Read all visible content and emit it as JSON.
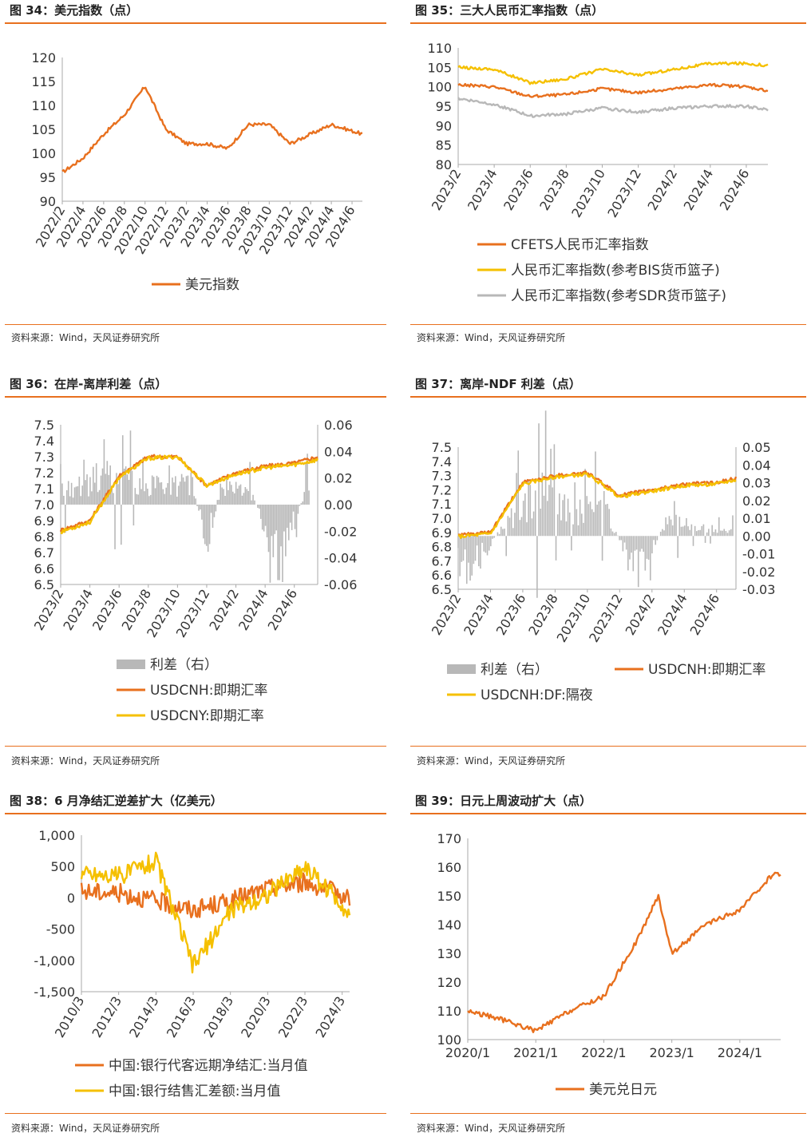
{
  "source_text": "资料来源：Wind，天风证券研究所",
  "panels": [
    {
      "title": "图 34：美元指数（点）",
      "chart_data": {
        "type": "line",
        "title": "图 34：美元指数（点）",
        "x_ticks": [
          "2022/2",
          "2022/4",
          "2022/6",
          "2022/8",
          "2022/10",
          "2022/12",
          "2023/2",
          "2023/4",
          "2023/6",
          "2023/8",
          "2023/10",
          "2023/12",
          "2024/2",
          "2024/4",
          "2024/6"
        ],
        "ylim": [
          90,
          120
        ],
        "y_ticks": [
          90,
          95,
          100,
          105,
          110,
          115,
          120
        ],
        "series": [
          {
            "name": "美元指数",
            "color": "#e8701e",
            "x": [
              0,
              1,
              2,
              3,
              4,
              5,
              6,
              7,
              8,
              9,
              10,
              11,
              12,
              13,
              14.5
            ],
            "values": [
              96,
              99,
              104,
              108,
              114,
              105,
              102,
              102,
              101,
              106,
              106,
              102,
              104,
              106,
              104
            ]
          }
        ],
        "legend": "bottom"
      }
    },
    {
      "title": "图 35：三大人民币汇率指数（点）",
      "chart_data": {
        "type": "line",
        "title": "图 35：三大人民币汇率指数（点）",
        "x_ticks": [
          "2023/2",
          "2023/4",
          "2023/6",
          "2023/8",
          "2023/10",
          "2023/12",
          "2024/2",
          "2024/4",
          "2024/6"
        ],
        "ylim": [
          80,
          110
        ],
        "y_ticks": [
          80,
          85,
          90,
          95,
          100,
          105,
          110
        ],
        "series": [
          {
            "name": "CFETS人民币汇率指数",
            "color": "#e8701e",
            "x": [
              0,
              1,
              2,
              3,
              4,
              5,
              6,
              7,
              8,
              8.6
            ],
            "values": [
              100.5,
              100,
              97.5,
              98,
              99.5,
              98.5,
              99.5,
              100.5,
              100,
              99
            ]
          },
          {
            "name": "人民币汇率指数(参考BIS货币篮子)",
            "color": "#f5c000",
            "x": [
              0,
              1,
              2,
              3,
              4,
              5,
              6,
              7,
              8,
              8.6
            ],
            "values": [
              105,
              104.5,
              101,
              102,
              104.5,
              103,
              104.5,
              106,
              106,
              105.5
            ]
          },
          {
            "name": "人民币汇率指数(参考SDR货币篮子)",
            "color": "#b8b8b8",
            "x": [
              0,
              1,
              2,
              3,
              4,
              5,
              6,
              7,
              8,
              8.6
            ],
            "values": [
              97,
              95.5,
              92.5,
              93,
              94.5,
              93.5,
              94.5,
              95,
              95,
              94
            ]
          }
        ],
        "legend": "bottom"
      }
    },
    {
      "title": "图 36：在岸-离岸利差（点）",
      "chart_data": {
        "type": "line",
        "title": "图 36：在岸-离岸利差（点）",
        "x_ticks": [
          "2023/2",
          "2023/4",
          "2023/6",
          "2023/8",
          "2023/10",
          "2023/12",
          "2024/2",
          "2024/4",
          "2024/6"
        ],
        "ylim_left": [
          6.5,
          7.5
        ],
        "y_ticks_left": [
          6.5,
          6.6,
          6.7,
          6.8,
          6.9,
          7.0,
          7.1,
          7.2,
          7.3,
          7.4,
          7.5
        ],
        "ylim_right": [
          -0.06,
          0.06
        ],
        "y_ticks_right": [
          -0.06,
          -0.04,
          -0.02,
          0.0,
          0.02,
          0.04,
          0.06
        ],
        "series": [
          {
            "name": "利差（右）",
            "type": "bar",
            "axis": "right",
            "color": "#b8b8b8",
            "x": [
              0.5,
              1.5,
              2.5,
              3.5,
              4.5,
              5,
              5.5,
              6.5,
              7.5,
              8.5
            ],
            "values": [
              0.015,
              0.025,
              0.02,
              0.015,
              0.018,
              -0.035,
              0.015,
              0.012,
              -0.05,
              0.02
            ]
          },
          {
            "name": "USDCNH:即期汇率",
            "color": "#e8701e",
            "axis": "left",
            "x": [
              0,
              1,
              2,
              3,
              4,
              5,
              6,
              7,
              8,
              8.8
            ],
            "values": [
              6.84,
              6.9,
              7.18,
              7.3,
              7.3,
              7.12,
              7.2,
              7.24,
              7.26,
              7.3
            ]
          },
          {
            "name": "USDCNY:即期汇率",
            "color": "#f5c000",
            "axis": "left",
            "x": [
              0,
              1,
              2,
              3,
              4,
              5,
              6,
              7,
              8,
              8.8
            ],
            "values": [
              6.83,
              6.89,
              7.17,
              7.29,
              7.3,
              7.12,
              7.19,
              7.23,
              7.25,
              7.28
            ]
          }
        ],
        "legend": "bottom"
      }
    },
    {
      "title": "图 37：离岸-NDF 利差（点）",
      "chart_data": {
        "type": "line",
        "title": "图 37：离岸-NDF 利差（点）",
        "x_ticks": [
          "2023/2",
          "2023/4",
          "2023/6",
          "2023/8",
          "2023/10",
          "2023/12",
          "2024/2",
          "2024/4",
          "2024/6"
        ],
        "ylim_left": [
          6.5,
          7.5
        ],
        "y_ticks_left": [
          6.5,
          6.6,
          6.7,
          6.8,
          6.9,
          7.0,
          7.1,
          7.2,
          7.3,
          7.4,
          7.5
        ],
        "ylim_right": [
          -0.03,
          0.05
        ],
        "y_ticks_right": [
          -0.03,
          -0.02,
          -0.01,
          0.0,
          0.01,
          0.02,
          0.03,
          0.04,
          0.05
        ],
        "series": [
          {
            "name": "利差（右）",
            "type": "bar",
            "axis": "right",
            "color": "#b8b8b8",
            "x": [
              0.5,
              1.5,
              2.5,
              3.5,
              4.5,
              5.5,
              6.5,
              7.5,
              8.5
            ],
            "values": [
              -0.02,
              0.01,
              0.03,
              0.015,
              0.02,
              -0.025,
              0.01,
              0.005,
              0.005
            ]
          },
          {
            "name": "USDCNH:即期汇率",
            "color": "#e8701e",
            "axis": "left",
            "x": [
              0,
              1,
              2,
              3,
              4,
              5,
              6,
              7,
              8,
              8.6
            ],
            "values": [
              6.88,
              6.9,
              7.25,
              7.3,
              7.32,
              7.16,
              7.2,
              7.24,
              7.25,
              7.28
            ]
          },
          {
            "name": "USDCNH:DF:隔夜",
            "color": "#f5c000",
            "axis": "left",
            "x": [
              0,
              1,
              2,
              3,
              4,
              5,
              6,
              7,
              8,
              8.6
            ],
            "values": [
              6.87,
              6.89,
              7.24,
              7.29,
              7.31,
              7.15,
              7.19,
              7.23,
              7.24,
              7.27
            ]
          }
        ],
        "legend": "bottom"
      }
    },
    {
      "title": "图 38：6 月净结汇逆差扩大（亿美元）",
      "chart_data": {
        "type": "line",
        "title": "图 38：6 月净结汇逆差扩大（亿美元）",
        "x_ticks": [
          "2010/3",
          "2012/3",
          "2014/3",
          "2016/3",
          "2018/3",
          "2020/3",
          "2022/3",
          "2024/3"
        ],
        "ylim": [
          -1500,
          1000
        ],
        "y_ticks": [
          -1500,
          -1000,
          -500,
          0,
          500,
          1000
        ],
        "y_tick_labels": [
          "-1,500",
          "-1,000",
          "-500",
          "0",
          "500",
          "1,000"
        ],
        "series": [
          {
            "name": "中国:银行代客远期净结汇:当月值",
            "color": "#e8701e",
            "x": [
              0,
              1,
              2,
              3,
              4,
              5,
              6,
              7,
              7.2
            ],
            "values": [
              100,
              80,
              -50,
              -200,
              -50,
              150,
              250,
              50,
              -10
            ]
          },
          {
            "name": "中国:银行结售汇差额:当月值",
            "color": "#f5c000",
            "x": [
              0,
              1,
              2,
              3,
              4,
              5,
              6,
              7,
              7.2
            ],
            "values": [
              400,
              350,
              600,
              -1100,
              -200,
              50,
              500,
              -100,
              -300
            ]
          }
        ],
        "legend": "bottom"
      }
    },
    {
      "title": "图 39：日元上周波动扩大（点）",
      "chart_data": {
        "type": "line",
        "title": "图 39：日元上周波动扩大（点）",
        "x_ticks": [
          "2020/1",
          "2021/1",
          "2022/1",
          "2023/1",
          "2024/1"
        ],
        "ylim": [
          100,
          170
        ],
        "y_ticks": [
          100,
          110,
          120,
          130,
          140,
          150,
          160,
          170
        ],
        "series": [
          {
            "name": "美元兑日元",
            "color": "#e8701e",
            "x": [
              0,
              0.5,
              1,
              1.5,
              2,
              2.5,
              2.8,
              3,
              3.5,
              4,
              4.5,
              4.6
            ],
            "values": [
              110,
              107,
              103,
              110,
              115,
              135,
              150,
              130,
              140,
              145,
              158,
              157
            ]
          }
        ],
        "legend": "bottom"
      }
    }
  ]
}
